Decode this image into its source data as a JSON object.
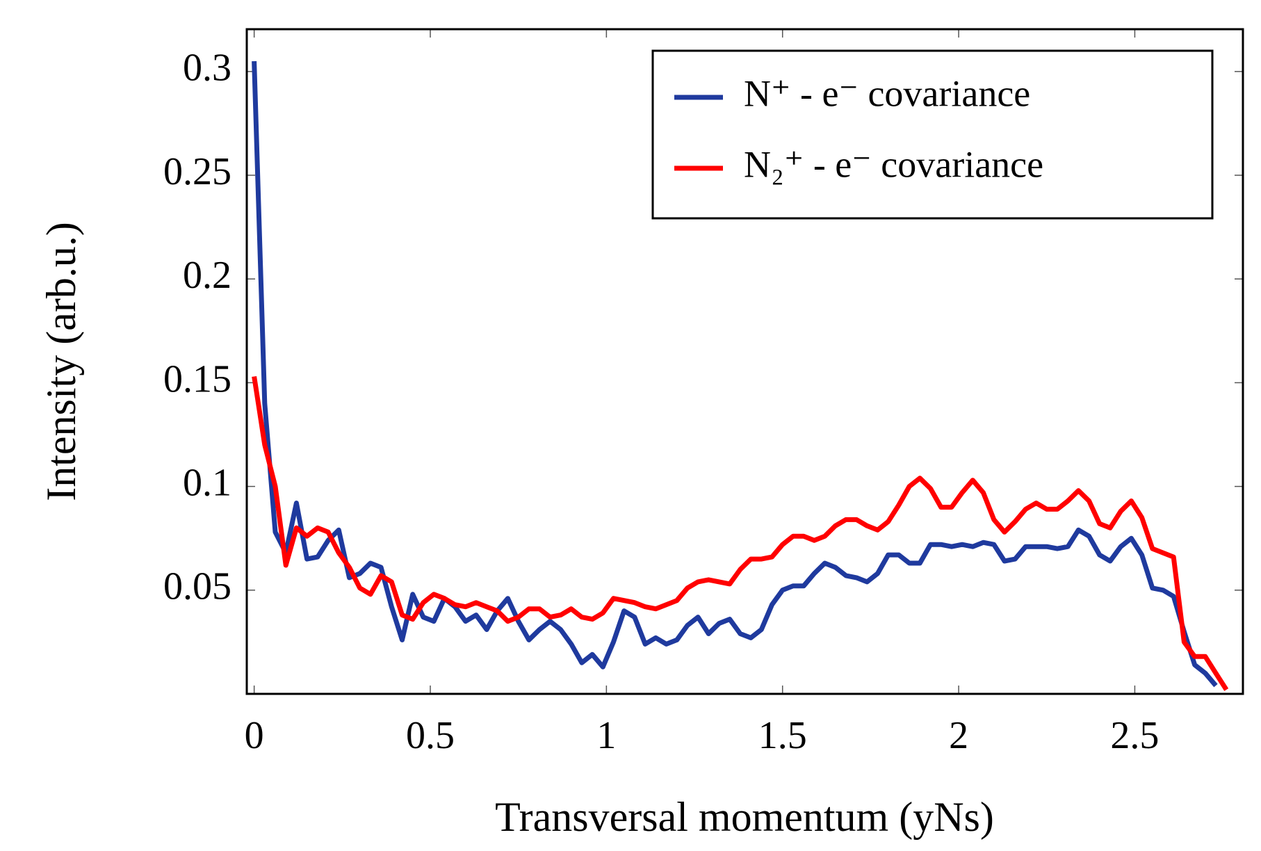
{
  "chart_data": {
    "type": "line",
    "xlabel": "Transversal momentum (yNs)",
    "ylabel": "Intensity (arb.u.)",
    "x": [
      0,
      0.03,
      0.06,
      0.09,
      0.12,
      0.15,
      0.18,
      0.21,
      0.24,
      0.27,
      0.3,
      0.33,
      0.36,
      0.39,
      0.42,
      0.45,
      0.48,
      0.51,
      0.54,
      0.57,
      0.6,
      0.63,
      0.66,
      0.69,
      0.72,
      0.75,
      0.78,
      0.81,
      0.84,
      0.87,
      0.9,
      0.93,
      0.96,
      0.99,
      1.02,
      1.05,
      1.08,
      1.11,
      1.14,
      1.17,
      1.2,
      1.23,
      1.26,
      1.29,
      1.32,
      1.35,
      1.38,
      1.41,
      1.44,
      1.47,
      1.5,
      1.53,
      1.56,
      1.59,
      1.62,
      1.65,
      1.68,
      1.71,
      1.74,
      1.77,
      1.8,
      1.83,
      1.86,
      1.89,
      1.92,
      1.95,
      1.98,
      2.01,
      2.04,
      2.07,
      2.1,
      2.13,
      2.16,
      2.19,
      2.22,
      2.25,
      2.28,
      2.31,
      2.34,
      2.37,
      2.4,
      2.43,
      2.46,
      2.49,
      2.52,
      2.55,
      2.58,
      2.61,
      2.64,
      2.67,
      2.7,
      2.73,
      2.76
    ],
    "series": [
      {
        "name": "N⁺ - e⁻ covariance",
        "color": "#1f3a9e",
        "values": [
          0.305,
          0.14,
          0.078,
          0.068,
          0.092,
          0.065,
          0.066,
          0.074,
          0.079,
          0.056,
          0.058,
          0.063,
          0.061,
          0.042,
          0.026,
          0.048,
          0.037,
          0.035,
          0.046,
          0.042,
          0.035,
          0.038,
          0.031,
          0.04,
          0.046,
          0.035,
          0.026,
          0.031,
          0.035,
          0.031,
          0.024,
          0.015,
          0.019,
          0.013,
          0.025,
          0.04,
          0.037,
          0.024,
          0.027,
          0.024,
          0.026,
          0.033,
          0.037,
          0.029,
          0.034,
          0.036,
          0.029,
          0.027,
          0.031,
          0.043,
          0.05,
          0.052,
          0.052,
          0.058,
          0.063,
          0.061,
          0.057,
          0.056,
          0.054,
          0.058,
          0.067,
          0.067,
          0.063,
          0.063,
          0.072,
          0.072,
          0.071,
          0.072,
          0.071,
          0.073,
          0.072,
          0.064,
          0.065,
          0.071,
          0.071,
          0.071,
          0.07,
          0.071,
          0.079,
          0.076,
          0.067,
          0.064,
          0.071,
          0.075,
          0.067,
          0.051,
          0.05,
          0.047,
          0.03,
          0.014,
          0.01,
          0.004,
          null
        ]
      },
      {
        "name": "N₂⁺ - e⁻ covariance",
        "color": "#ff0000",
        "values": [
          0.153,
          0.12,
          0.1,
          0.062,
          0.08,
          0.076,
          0.08,
          0.078,
          0.068,
          0.061,
          0.051,
          0.048,
          0.057,
          0.054,
          0.038,
          0.036,
          0.044,
          0.048,
          0.046,
          0.043,
          0.042,
          0.044,
          0.042,
          0.04,
          0.035,
          0.037,
          0.041,
          0.041,
          0.037,
          0.038,
          0.041,
          0.037,
          0.036,
          0.039,
          0.046,
          0.045,
          0.044,
          0.042,
          0.041,
          0.043,
          0.045,
          0.051,
          0.054,
          0.055,
          0.054,
          0.053,
          0.06,
          0.065,
          0.065,
          0.066,
          0.072,
          0.076,
          0.076,
          0.074,
          0.076,
          0.081,
          0.084,
          0.084,
          0.081,
          0.079,
          0.083,
          0.091,
          0.1,
          0.104,
          0.099,
          0.09,
          0.09,
          0.097,
          0.103,
          0.097,
          0.084,
          0.078,
          0.083,
          0.089,
          0.092,
          0.089,
          0.089,
          0.093,
          0.098,
          0.093,
          0.082,
          0.08,
          0.088,
          0.093,
          0.085,
          0.07,
          0.068,
          0.066,
          0.025,
          0.018,
          0.018,
          0.01,
          0.002
        ]
      }
    ],
    "xlim": [
      -0.021,
      2.807
    ],
    "ylim": [
      0,
      0.3204
    ],
    "xticks": [
      0,
      0.5,
      1,
      1.5,
      2,
      2.5
    ],
    "yticks": [
      0.05,
      0.1,
      0.15,
      0.2,
      0.25,
      0.3
    ],
    "legend": "upper right"
  }
}
